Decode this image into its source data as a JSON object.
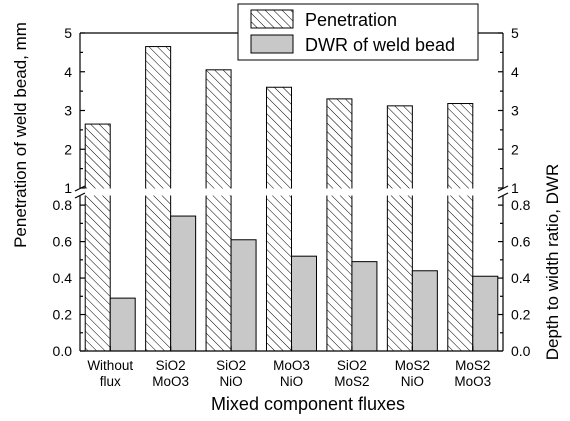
{
  "chart_data": {
    "type": "bar",
    "xlabel": "Mixed component fluxes",
    "ylabel_left": "Penetration of weld bead, mm",
    "ylabel_right": "Depth to width ratio, DWR",
    "categories": [
      [
        "Without",
        "flux"
      ],
      [
        "SiO2",
        "MoO3"
      ],
      [
        "SiO2",
        "NiO"
      ],
      [
        "MoO3",
        "NiO"
      ],
      [
        "SiO2",
        "MoS2"
      ],
      [
        "MoS2",
        "NiO"
      ],
      [
        "MoS2",
        "MoO3"
      ]
    ],
    "series": [
      {
        "name": "Penetration",
        "fill": "hatch",
        "values": [
          2.65,
          4.65,
          4.05,
          3.6,
          3.3,
          3.12,
          3.18
        ]
      },
      {
        "name": "DWR of weld bead",
        "fill": "#c8c8c8",
        "values": [
          0.29,
          0.74,
          0.61,
          0.52,
          0.49,
          0.44,
          0.41
        ]
      }
    ],
    "axis_break": {
      "lower_range": [
        0,
        0.85
      ],
      "upper_range": [
        1,
        5
      ]
    },
    "y_ticks_lower": [
      "0.0",
      "0.2",
      "0.4",
      "0.6",
      "0.8"
    ],
    "y_ticks_upper": [
      "1",
      "2",
      "3",
      "4",
      "5"
    ],
    "legend_position": "top-right"
  }
}
